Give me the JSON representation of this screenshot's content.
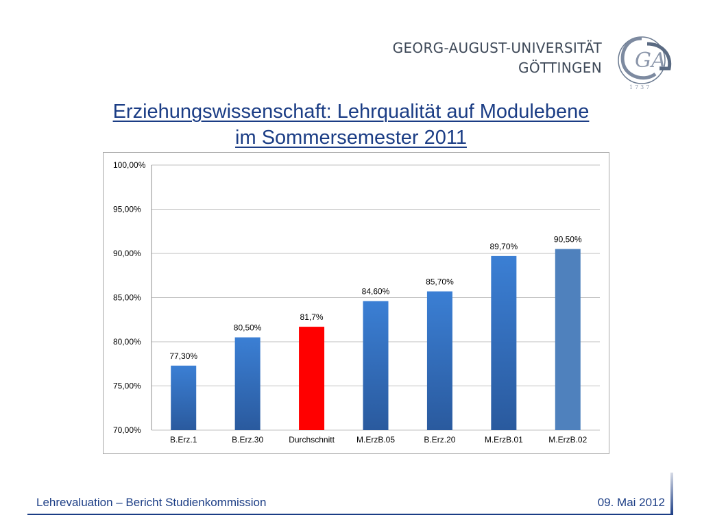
{
  "header": {
    "university_line1": "GEORG-AUGUST-UNIVERSITÄT",
    "university_line2": "GÖTTINGEN",
    "logo_letters": "GA",
    "logo_motto": "1737"
  },
  "title": {
    "line1": "Erziehungswissenschaft: Lehrqualität auf Modulebene",
    "line2": "im Sommersemester 2011"
  },
  "chart_data": {
    "type": "bar",
    "categories": [
      "B.Erz.1",
      "B.Erz.30",
      "Durchschnitt",
      "M.ErzB.05",
      "B.Erz.20",
      "M.ErzB.01",
      "M.ErzB.02"
    ],
    "values": [
      77.3,
      80.5,
      81.7,
      84.6,
      85.7,
      89.7,
      90.5
    ],
    "data_labels": [
      "77,30%",
      "80,50%",
      "81,7%",
      "84,60%",
      "85,70%",
      "89,70%",
      "90,50%"
    ],
    "yticks": [
      70,
      75,
      80,
      85,
      90,
      95,
      100
    ],
    "ytick_labels": [
      "70,00%",
      "75,00%",
      "80,00%",
      "85,00%",
      "90,00%",
      "95,00%",
      "100,00%"
    ],
    "ylim": [
      70,
      100
    ],
    "grid": true,
    "highlight_category": "Durchschnitt",
    "colors": {
      "bar_top": "#3b7fd4",
      "bar_bottom": "#2a5a9e",
      "highlight": "#ff0000",
      "last_bar": "#4f81bd",
      "grid": "#bfbfbf"
    }
  },
  "footer": {
    "left": "Lehrevaluation – Bericht Studienkommission",
    "right": "09. Mai 2012"
  }
}
